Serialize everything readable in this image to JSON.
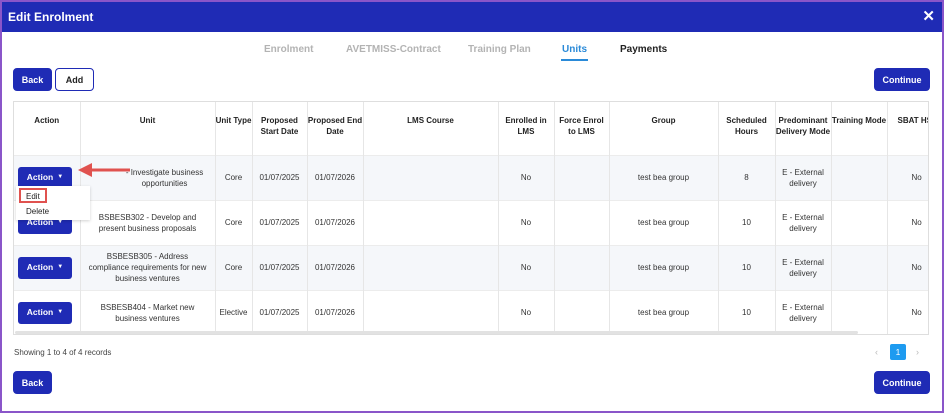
{
  "dialog": {
    "title": "Edit Enrolment",
    "close": "✕"
  },
  "tabs": [
    {
      "label": "Enrolment"
    },
    {
      "label": "AVETMISS-Contract"
    },
    {
      "label": "Training Plan"
    },
    {
      "label": "Units"
    },
    {
      "label": "Payments"
    }
  ],
  "active_tab": "Units",
  "toolbar": {
    "back": "Back",
    "add": "Add",
    "continue": "Continue"
  },
  "table": {
    "headers": [
      "Action",
      "Unit",
      "Unit Type",
      "Proposed Start Date",
      "Proposed End Date",
      "LMS Course",
      "Enrolled in LMS",
      "Force Enrol to LMS",
      "Group",
      "Scheduled Hours",
      "Predominant Delivery Mode",
      "Training Mode",
      "SBAT HSC Program"
    ],
    "action_label": "Action",
    "rows": [
      {
        "unit": "- Investigate business opportunities",
        "type": "Core",
        "start": "01/07/2025",
        "end": "01/07/2026",
        "lms_course": "",
        "enrolled": "No",
        "force": "",
        "group": "test bea group",
        "hours": "8",
        "delivery": "E - External delivery",
        "training_mode": "",
        "sbat": "No"
      },
      {
        "unit": "BSBESB302 - Develop and present business proposals",
        "type": "Core",
        "start": "01/07/2025",
        "end": "01/07/2026",
        "lms_course": "",
        "enrolled": "No",
        "force": "",
        "group": "test bea group",
        "hours": "10",
        "delivery": "E - External delivery",
        "training_mode": "",
        "sbat": "No"
      },
      {
        "unit": "BSBESB305 - Address compliance requirements for new business ventures",
        "type": "Core",
        "start": "01/07/2025",
        "end": "01/07/2026",
        "lms_course": "",
        "enrolled": "No",
        "force": "",
        "group": "test bea group",
        "hours": "10",
        "delivery": "E - External delivery",
        "training_mode": "",
        "sbat": "No"
      },
      {
        "unit": "BSBESB404 - Market new business ventures",
        "type": "Elective",
        "start": "01/07/2025",
        "end": "01/07/2026",
        "lms_course": "",
        "enrolled": "No",
        "force": "",
        "group": "test bea group",
        "hours": "10",
        "delivery": "E - External delivery",
        "training_mode": "",
        "sbat": "No"
      }
    ]
  },
  "dropdown": {
    "edit": "Edit",
    "delete": "Delete"
  },
  "footer": {
    "records": "Showing 1 to 4 of 4 records",
    "prev": "‹",
    "page": "1",
    "next": "›"
  },
  "colors": {
    "primary": "#1f2bb5",
    "tab_active": "#2a8ad8",
    "highlight": "#e0524f",
    "page_active": "#1e9bf0",
    "frame": "#8a55c9"
  }
}
